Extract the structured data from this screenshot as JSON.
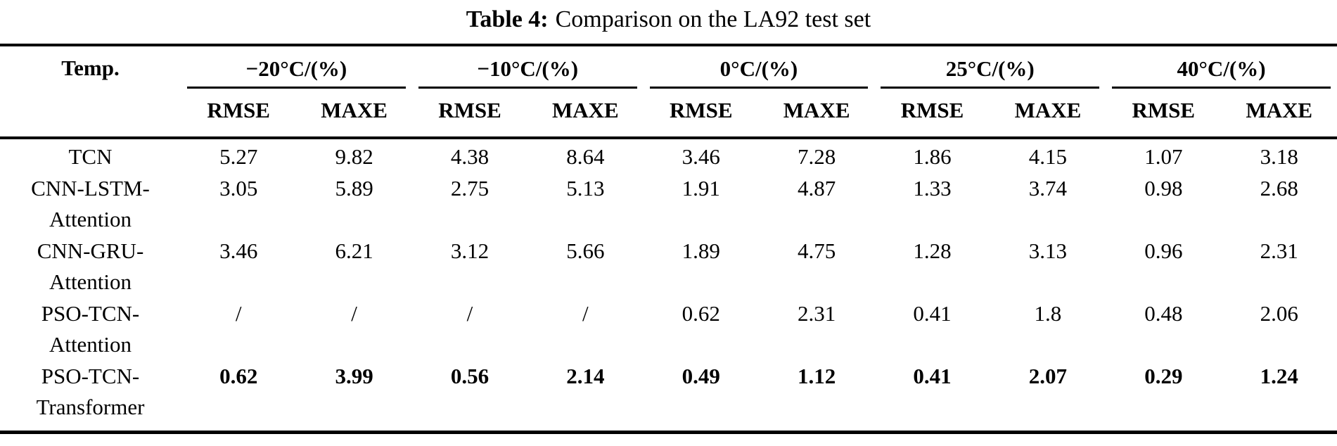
{
  "caption": {
    "label": "Table 4:",
    "text": "Comparison on the LA92 test set"
  },
  "table": {
    "corner": "Temp.",
    "groups": [
      {
        "label": "−20°C/(%)",
        "sub": [
          "RMSE",
          "MAXE"
        ]
      },
      {
        "label": "−10°C/(%)",
        "sub": [
          "RMSE",
          "MAXE"
        ]
      },
      {
        "label": "0°C/(%)",
        "sub": [
          "RMSE",
          "MAXE"
        ]
      },
      {
        "label": "25°C/(%)",
        "sub": [
          "RMSE",
          "MAXE"
        ]
      },
      {
        "label": "40°C/(%)",
        "sub": [
          "RMSE",
          "MAXE"
        ]
      }
    ],
    "rows": [
      {
        "model": [
          "TCN"
        ],
        "values": [
          "5.27",
          "9.82",
          "4.38",
          "8.64",
          "3.46",
          "7.28",
          "1.86",
          "4.15",
          "1.07",
          "3.18"
        ],
        "bold": false
      },
      {
        "model": [
          "CNN-LSTM-",
          "Attention"
        ],
        "values": [
          "3.05",
          "5.89",
          "2.75",
          "5.13",
          "1.91",
          "4.87",
          "1.33",
          "3.74",
          "0.98",
          "2.68"
        ],
        "bold": false
      },
      {
        "model": [
          "CNN-GRU-",
          "Attention"
        ],
        "values": [
          "3.46",
          "6.21",
          "3.12",
          "5.66",
          "1.89",
          "4.75",
          "1.28",
          "3.13",
          "0.96",
          "2.31"
        ],
        "bold": false
      },
      {
        "model": [
          "PSO-TCN-",
          "Attention"
        ],
        "values": [
          "/",
          "/",
          "/",
          "/",
          "0.62",
          "2.31",
          "0.41",
          "1.8",
          "0.48",
          "2.06"
        ],
        "bold": false
      },
      {
        "model": [
          "PSO-TCN-",
          "Transformer"
        ],
        "values": [
          "0.62",
          "3.99",
          "0.56",
          "2.14",
          "0.49",
          "1.12",
          "0.41",
          "2.07",
          "0.29",
          "1.24"
        ],
        "bold": true
      }
    ]
  }
}
